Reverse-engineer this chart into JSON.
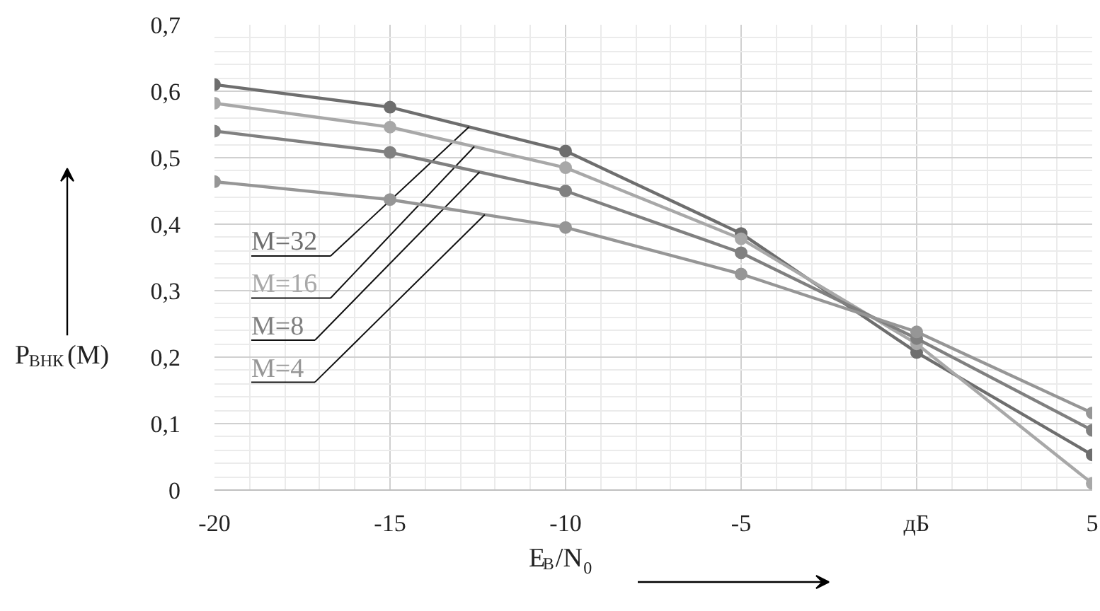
{
  "chart_data": {
    "type": "line",
    "xlabel": "E$_{В}$/N$_{0}$",
    "ylabel": "P$_{ВНК}$(M)",
    "x": [
      -20,
      -15,
      -10,
      -5,
      0,
      5
    ],
    "series": [
      {
        "name": "M=32",
        "color": "#6e6e6e",
        "values": [
          0.61,
          0.576,
          0.51,
          0.386,
          0.207,
          0.053
        ]
      },
      {
        "name": "M=16",
        "color": "#a8a8a8",
        "values": [
          0.582,
          0.546,
          0.485,
          0.378,
          0.22,
          0.01
        ]
      },
      {
        "name": "M=8",
        "color": "#808080",
        "values": [
          0.54,
          0.508,
          0.45,
          0.357,
          0.228,
          0.09
        ]
      },
      {
        "name": "M=4",
        "color": "#969696",
        "values": [
          0.464,
          0.437,
          0.395,
          0.325,
          0.238,
          0.116
        ]
      }
    ],
    "xlim": [
      -20,
      5
    ],
    "ylim": [
      0,
      0.7
    ],
    "xticks": [
      -20,
      -15,
      -10,
      -5,
      {
        "value": 0,
        "label": "дБ"
      },
      5
    ],
    "yticks": [
      0,
      {
        "value": 0.1,
        "label": "0,1"
      },
      {
        "value": 0.2,
        "label": "0,2"
      },
      {
        "value": 0.3,
        "label": "0,3"
      },
      {
        "value": 0.4,
        "label": "0,4"
      },
      {
        "value": 0.5,
        "label": "0,5"
      },
      {
        "value": 0.6,
        "label": "0,6"
      },
      {
        "value": 0.7,
        "label": "0,7"
      }
    ],
    "grid": true,
    "legend": "left",
    "marker": "circle",
    "line_style": "solid"
  }
}
